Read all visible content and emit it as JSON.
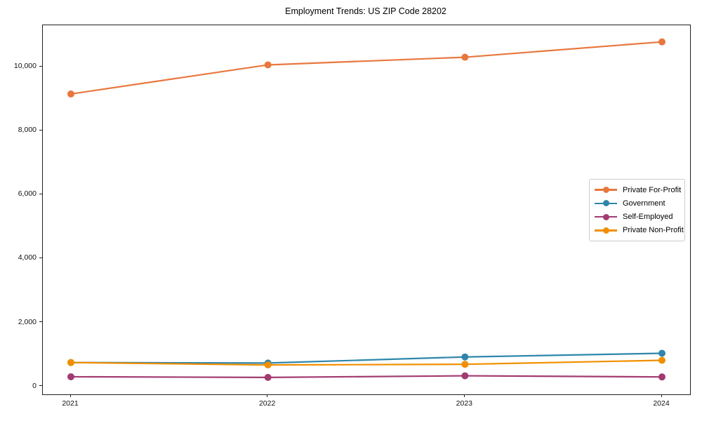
{
  "figure": {
    "background": "#ffffff",
    "frame_color": "#1f1f1f",
    "text_color": "#000000",
    "legend_border_color": "#cccccc"
  },
  "chart_data": {
    "type": "line",
    "title": "Employment Trends: US ZIP Code 28202",
    "xlabel": "",
    "ylabel": "",
    "categories": [
      "2021",
      "2022",
      "2023",
      "2024"
    ],
    "series": [
      {
        "name": "Private For-Profit",
        "color": "#E8773D",
        "values": [
          9150,
          10060,
          10300,
          10780
        ]
      },
      {
        "name": "Government",
        "color": "#2E86AB",
        "values": [
          745,
          730,
          920,
          1035
        ]
      },
      {
        "name": "Self-Employed",
        "color": "#A23B72",
        "values": [
          300,
          280,
          330,
          295
        ]
      },
      {
        "name": "Private Non-Profit",
        "color": "#F18F01",
        "values": [
          745,
          670,
          690,
          815
        ]
      }
    ],
    "ylim": [
      -250,
      11300
    ],
    "yticks": {
      "values": [
        0,
        2000,
        4000,
        6000,
        8000,
        10000
      ],
      "labels": [
        "0",
        "2,000",
        "4,000",
        "6,000",
        "8,000",
        "10,000"
      ]
    },
    "grid": false,
    "legend_position": "center right",
    "marker": "circle",
    "line_width": 2.2,
    "marker_radius": 5
  }
}
